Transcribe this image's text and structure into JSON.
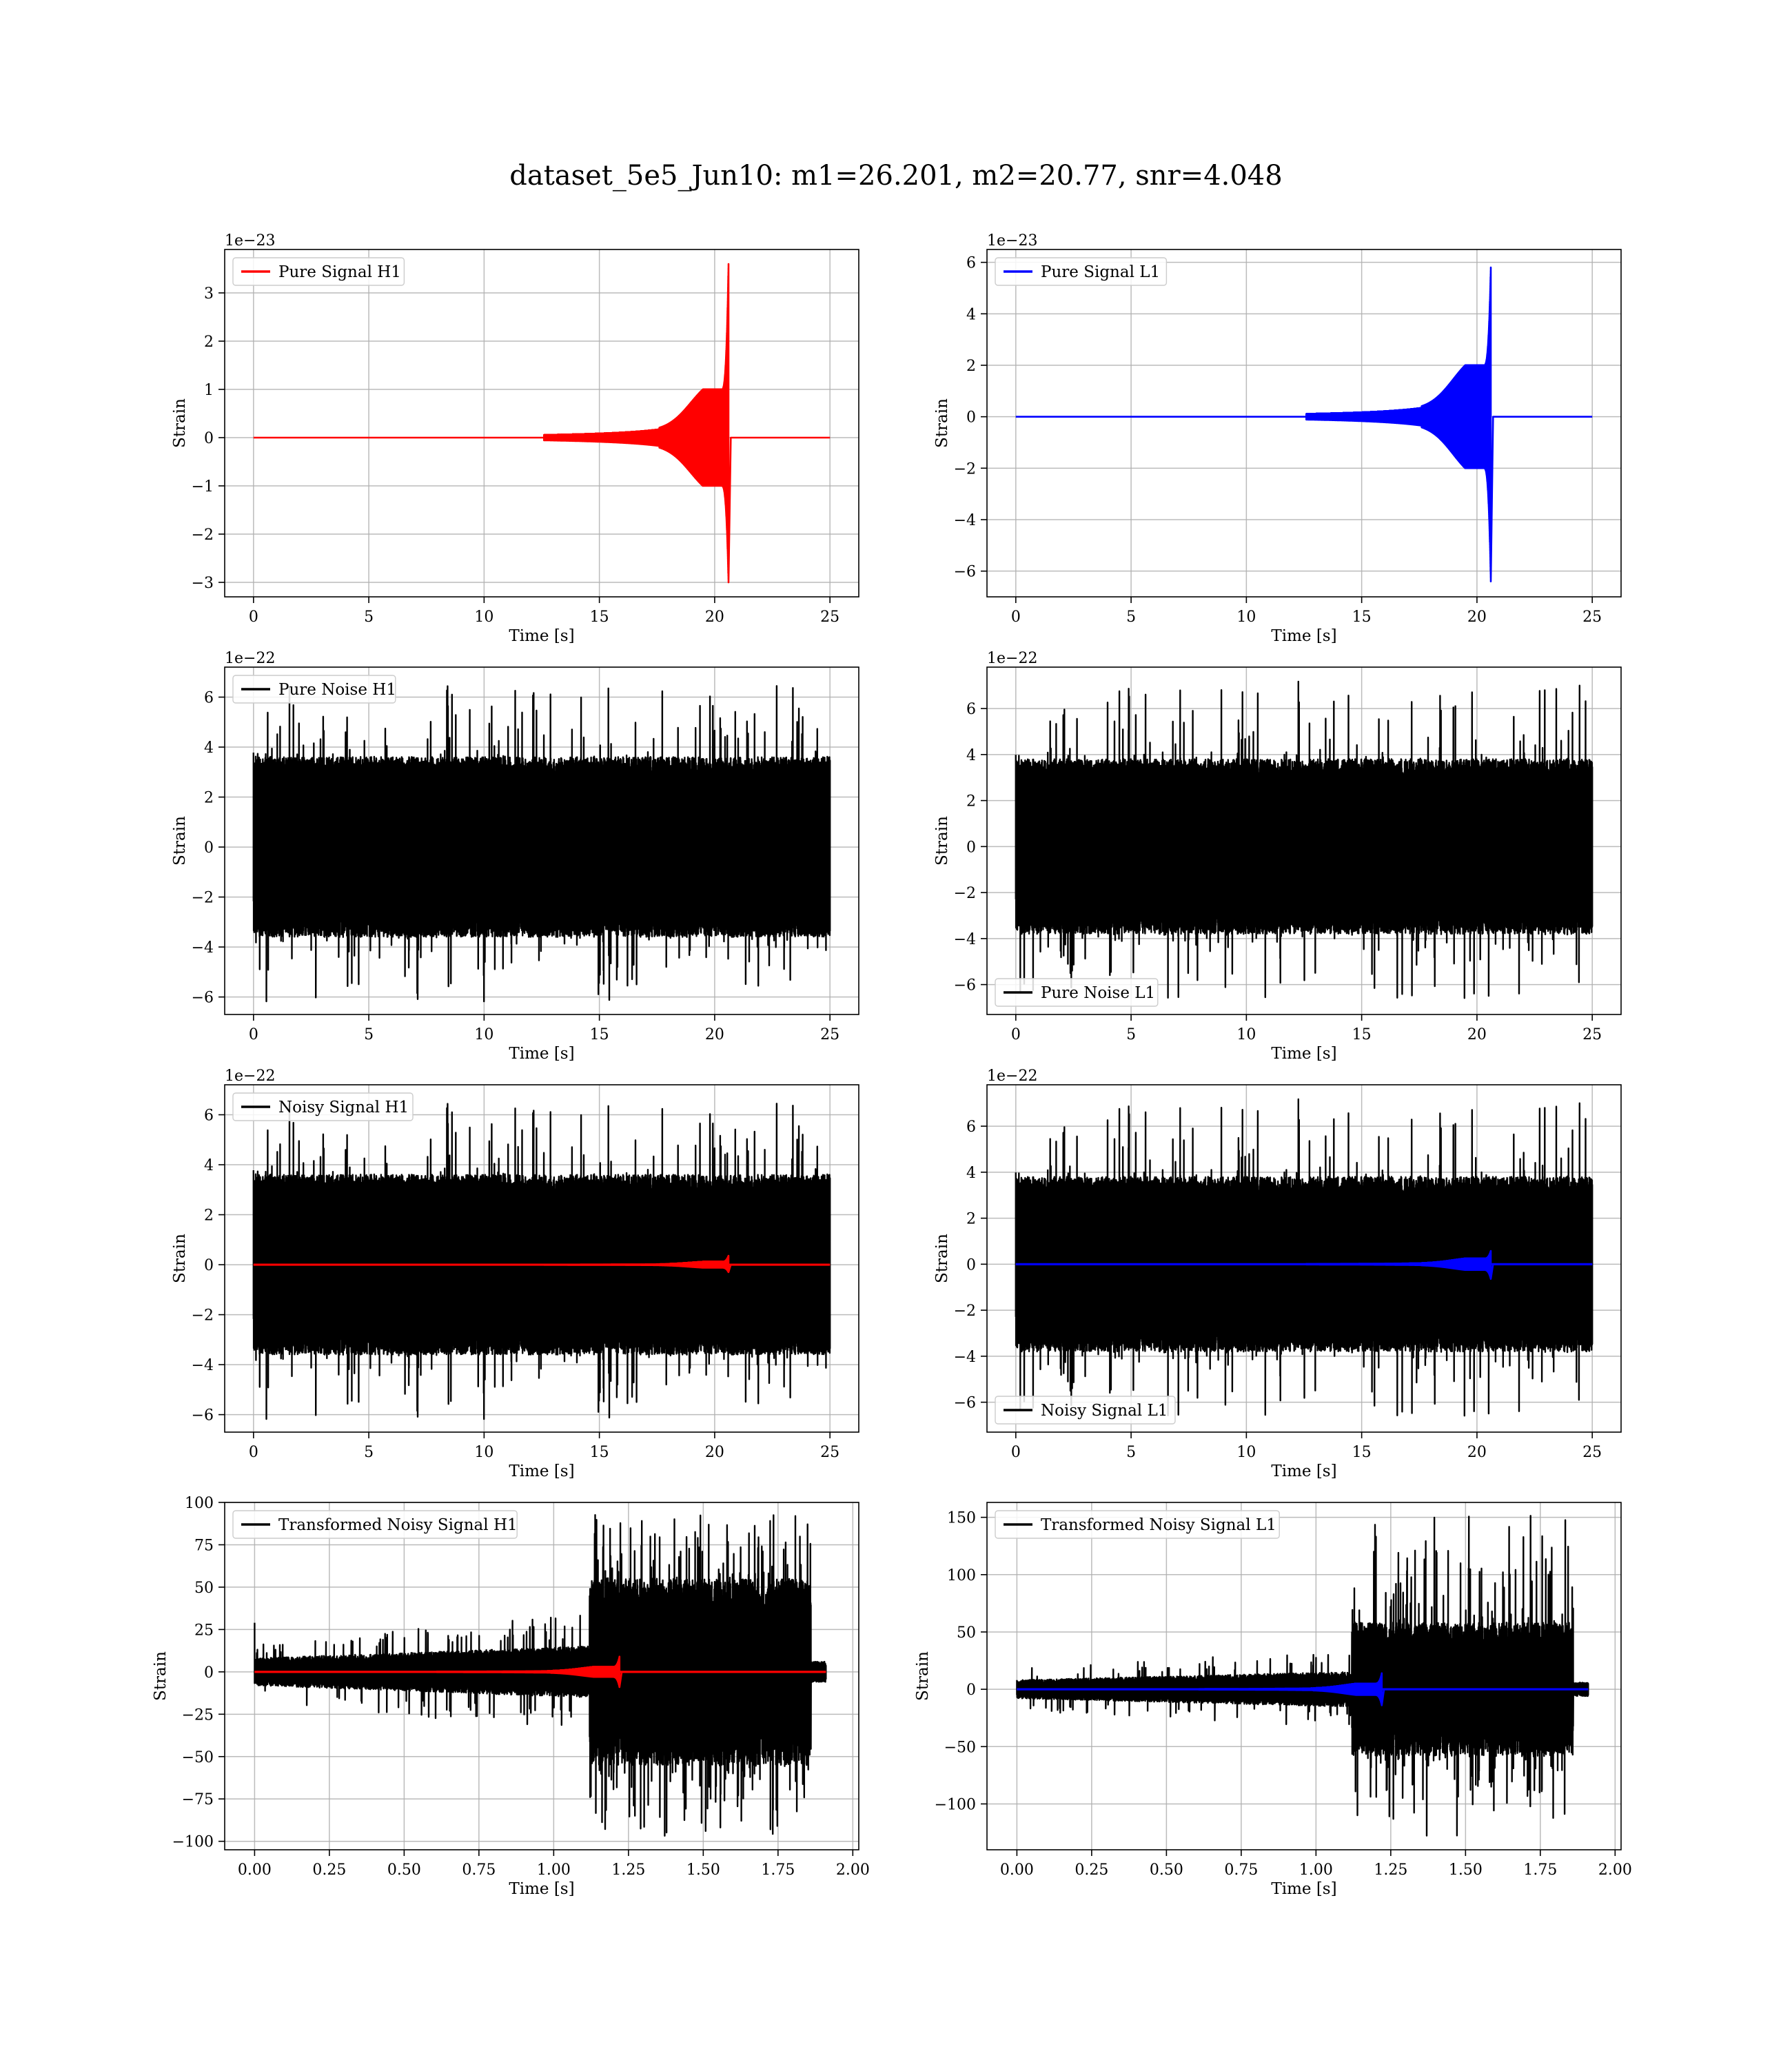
{
  "figure": {
    "title": "dataset_5e5_Jun10: m1=26.201, m2=20.77, snr=4.048"
  },
  "colors": {
    "h1_signal": "#ff0000",
    "l1_signal": "#0000ff",
    "noise": "#000000",
    "grid": "#b0b0b0"
  },
  "chart_data": [
    {
      "id": "pure-signal-h1",
      "type": "line",
      "xlabel": "Time [s]",
      "ylabel": "Strain",
      "offset_text": "1e−23",
      "xlim": [
        -1.25,
        26.25
      ],
      "ylim": [
        -3.3,
        3.9
      ],
      "xticks": [
        0,
        5,
        10,
        15,
        20,
        25
      ],
      "xtick_labels": [
        "0",
        "5",
        "10",
        "15",
        "20",
        "25"
      ],
      "yticks": [
        -3,
        -2,
        -1,
        0,
        1,
        2,
        3
      ],
      "ytick_labels": [
        "−3",
        "−2",
        "−1",
        "0",
        "1",
        "2",
        "3"
      ],
      "grid": true,
      "legend_position": "upper-left",
      "series": [
        {
          "name": "Pure Signal H1",
          "color": "#ff0000",
          "kind": "chirp",
          "x_range": [
            0,
            25
          ],
          "merger_time": 20.6,
          "peak_max": 3.6,
          "peak_min": -3.0,
          "envelope_max": 1.0,
          "envelope_min": -1.0
        }
      ]
    },
    {
      "id": "pure-signal-l1",
      "type": "line",
      "xlabel": "Time [s]",
      "ylabel": "Strain",
      "offset_text": "1e−23",
      "xlim": [
        -1.25,
        26.25
      ],
      "ylim": [
        -7.0,
        6.5
      ],
      "xticks": [
        0,
        5,
        10,
        15,
        20,
        25
      ],
      "xtick_labels": [
        "0",
        "5",
        "10",
        "15",
        "20",
        "25"
      ],
      "yticks": [
        -6,
        -4,
        -2,
        0,
        2,
        4,
        6
      ],
      "ytick_labels": [
        "−6",
        "−4",
        "−2",
        "0",
        "2",
        "4",
        "6"
      ],
      "grid": true,
      "legend_position": "upper-left",
      "series": [
        {
          "name": "Pure Signal L1",
          "color": "#0000ff",
          "kind": "chirp",
          "x_range": [
            0,
            25
          ],
          "merger_time": 20.6,
          "peak_max": 5.8,
          "peak_min": -6.4,
          "envelope_max": 2.0,
          "envelope_min": -2.0
        }
      ]
    },
    {
      "id": "pure-noise-h1",
      "type": "line",
      "xlabel": "Time [s]",
      "ylabel": "Strain",
      "offset_text": "1e−22",
      "xlim": [
        -1.25,
        26.25
      ],
      "ylim": [
        -6.7,
        7.2
      ],
      "xticks": [
        0,
        5,
        10,
        15,
        20,
        25
      ],
      "xtick_labels": [
        "0",
        "5",
        "10",
        "15",
        "20",
        "25"
      ],
      "yticks": [
        -6,
        -4,
        -2,
        0,
        2,
        4,
        6
      ],
      "ytick_labels": [
        "−6",
        "−4",
        "−2",
        "0",
        "2",
        "4",
        "6"
      ],
      "grid": true,
      "legend_position": "upper-left",
      "series": [
        {
          "name": "Pure Noise H1",
          "color": "#000000",
          "kind": "noise",
          "x_range": [
            0,
            25
          ],
          "band": 3.6,
          "spike_max": 6.6,
          "spike_min": -6.2,
          "seed": 11
        }
      ]
    },
    {
      "id": "pure-noise-l1",
      "type": "line",
      "xlabel": "Time [s]",
      "ylabel": "Strain",
      "offset_text": "1e−22",
      "xlim": [
        -1.25,
        26.25
      ],
      "ylim": [
        -7.3,
        7.8
      ],
      "xticks": [
        0,
        5,
        10,
        15,
        20,
        25
      ],
      "xtick_labels": [
        "0",
        "5",
        "10",
        "15",
        "20",
        "25"
      ],
      "yticks": [
        -6,
        -4,
        -2,
        0,
        2,
        4,
        6
      ],
      "ytick_labels": [
        "−6",
        "−4",
        "−2",
        "0",
        "2",
        "4",
        "6"
      ],
      "grid": true,
      "legend_position": "lower-left",
      "series": [
        {
          "name": "Pure Noise L1",
          "color": "#000000",
          "kind": "noise",
          "x_range": [
            0,
            25
          ],
          "band": 3.8,
          "spike_max": 7.2,
          "spike_min": -6.6,
          "seed": 23
        }
      ]
    },
    {
      "id": "noisy-signal-h1",
      "type": "line",
      "xlabel": "Time [s]",
      "ylabel": "Strain",
      "offset_text": "1e−22",
      "xlim": [
        -1.25,
        26.25
      ],
      "ylim": [
        -6.7,
        7.2
      ],
      "xticks": [
        0,
        5,
        10,
        15,
        20,
        25
      ],
      "xtick_labels": [
        "0",
        "5",
        "10",
        "15",
        "20",
        "25"
      ],
      "yticks": [
        -6,
        -4,
        -2,
        0,
        2,
        4,
        6
      ],
      "ytick_labels": [
        "−6",
        "−4",
        "−2",
        "0",
        "2",
        "4",
        "6"
      ],
      "grid": true,
      "legend_position": "upper-left",
      "series": [
        {
          "name": "Noisy Signal H1",
          "color": "#000000",
          "kind": "noise",
          "x_range": [
            0,
            25
          ],
          "band": 3.6,
          "spike_max": 6.6,
          "spike_min": -6.2,
          "seed": 11
        },
        {
          "color": "#ff0000",
          "kind": "chirp",
          "x_range": [
            0,
            25
          ],
          "merger_time": 20.6,
          "peak_max": 0.36,
          "peak_min": -0.3,
          "envelope_max": 0.12,
          "envelope_min": -0.12
        }
      ]
    },
    {
      "id": "noisy-signal-l1",
      "type": "line",
      "xlabel": "Time [s]",
      "ylabel": "Strain",
      "offset_text": "1e−22",
      "xlim": [
        -1.25,
        26.25
      ],
      "ylim": [
        -7.3,
        7.8
      ],
      "xticks": [
        0,
        5,
        10,
        15,
        20,
        25
      ],
      "xtick_labels": [
        "0",
        "5",
        "10",
        "15",
        "20",
        "25"
      ],
      "yticks": [
        -6,
        -4,
        -2,
        0,
        2,
        4,
        6
      ],
      "ytick_labels": [
        "−6",
        "−4",
        "−2",
        "0",
        "2",
        "4",
        "6"
      ],
      "grid": true,
      "legend_position": "lower-left",
      "series": [
        {
          "name": "Noisy Signal L1",
          "color": "#000000",
          "kind": "noise",
          "x_range": [
            0,
            25
          ],
          "band": 3.8,
          "spike_max": 7.2,
          "spike_min": -6.6,
          "seed": 23
        },
        {
          "color": "#0000ff",
          "kind": "chirp",
          "x_range": [
            0,
            25
          ],
          "merger_time": 20.6,
          "peak_max": 0.58,
          "peak_min": -0.64,
          "envelope_max": 0.25,
          "envelope_min": -0.25
        }
      ]
    },
    {
      "id": "transformed-noisy-signal-h1",
      "type": "line",
      "xlabel": "Time [s]",
      "ylabel": "Strain",
      "offset_text": "",
      "xlim": [
        -0.1,
        2.02
      ],
      "ylim": [
        -105,
        100
      ],
      "xticks": [
        0,
        0.25,
        0.5,
        0.75,
        1.0,
        1.25,
        1.5,
        1.75,
        2.0
      ],
      "xtick_labels": [
        "0.00",
        "0.25",
        "0.50",
        "0.75",
        "1.00",
        "1.25",
        "1.50",
        "1.75",
        "2.00"
      ],
      "yticks": [
        -100,
        -75,
        -50,
        -25,
        0,
        25,
        50,
        75,
        100
      ],
      "ytick_labels": [
        "−100",
        "−75",
        "−50",
        "−25",
        "0",
        "25",
        "50",
        "75",
        "100"
      ],
      "grid": true,
      "legend_position": "upper-left",
      "series": [
        {
          "name": "Transformed Noisy Signal H1",
          "color": "#000000",
          "kind": "burst",
          "x_range": [
            0,
            1.91
          ],
          "jump_time": 1.12,
          "end_time": 1.86,
          "pre_band": 8,
          "post_band": 55,
          "spike_max": 93,
          "spike_min": -97,
          "start_spike": 29,
          "seed": 37
        },
        {
          "color": "#ff0000",
          "kind": "chirp",
          "x_range": [
            0,
            1.91
          ],
          "merger_time": 1.22,
          "peak_max": 9,
          "peak_min": -9,
          "envelope_max": 3,
          "envelope_min": -3
        }
      ]
    },
    {
      "id": "transformed-noisy-signal-l1",
      "type": "line",
      "xlabel": "Time [s]",
      "ylabel": "Strain",
      "offset_text": "",
      "xlim": [
        -0.1,
        2.02
      ],
      "ylim": [
        -140,
        163
      ],
      "xticks": [
        0,
        0.25,
        0.5,
        0.75,
        1.0,
        1.25,
        1.5,
        1.75,
        2.0
      ],
      "xtick_labels": [
        "0.00",
        "0.25",
        "0.50",
        "0.75",
        "1.00",
        "1.25",
        "1.50",
        "1.75",
        "2.00"
      ],
      "yticks": [
        -100,
        -50,
        0,
        50,
        100,
        150
      ],
      "ytick_labels": [
        "−100",
        "−50",
        "0",
        "50",
        "100",
        "150"
      ],
      "grid": true,
      "legend_position": "upper-left",
      "series": [
        {
          "name": "Transformed Noisy Signal L1",
          "color": "#000000",
          "kind": "burst",
          "x_range": [
            0,
            1.91
          ],
          "jump_time": 1.12,
          "end_time": 1.86,
          "pre_band": 8,
          "post_band": 58,
          "spike_max": 155,
          "spike_min": -128,
          "start_spike": 8,
          "seed": 53
        },
        {
          "color": "#0000ff",
          "kind": "chirp",
          "x_range": [
            0,
            1.91
          ],
          "merger_time": 1.22,
          "peak_max": 14,
          "peak_min": -14,
          "envelope_max": 5,
          "envelope_min": -5
        }
      ]
    }
  ]
}
